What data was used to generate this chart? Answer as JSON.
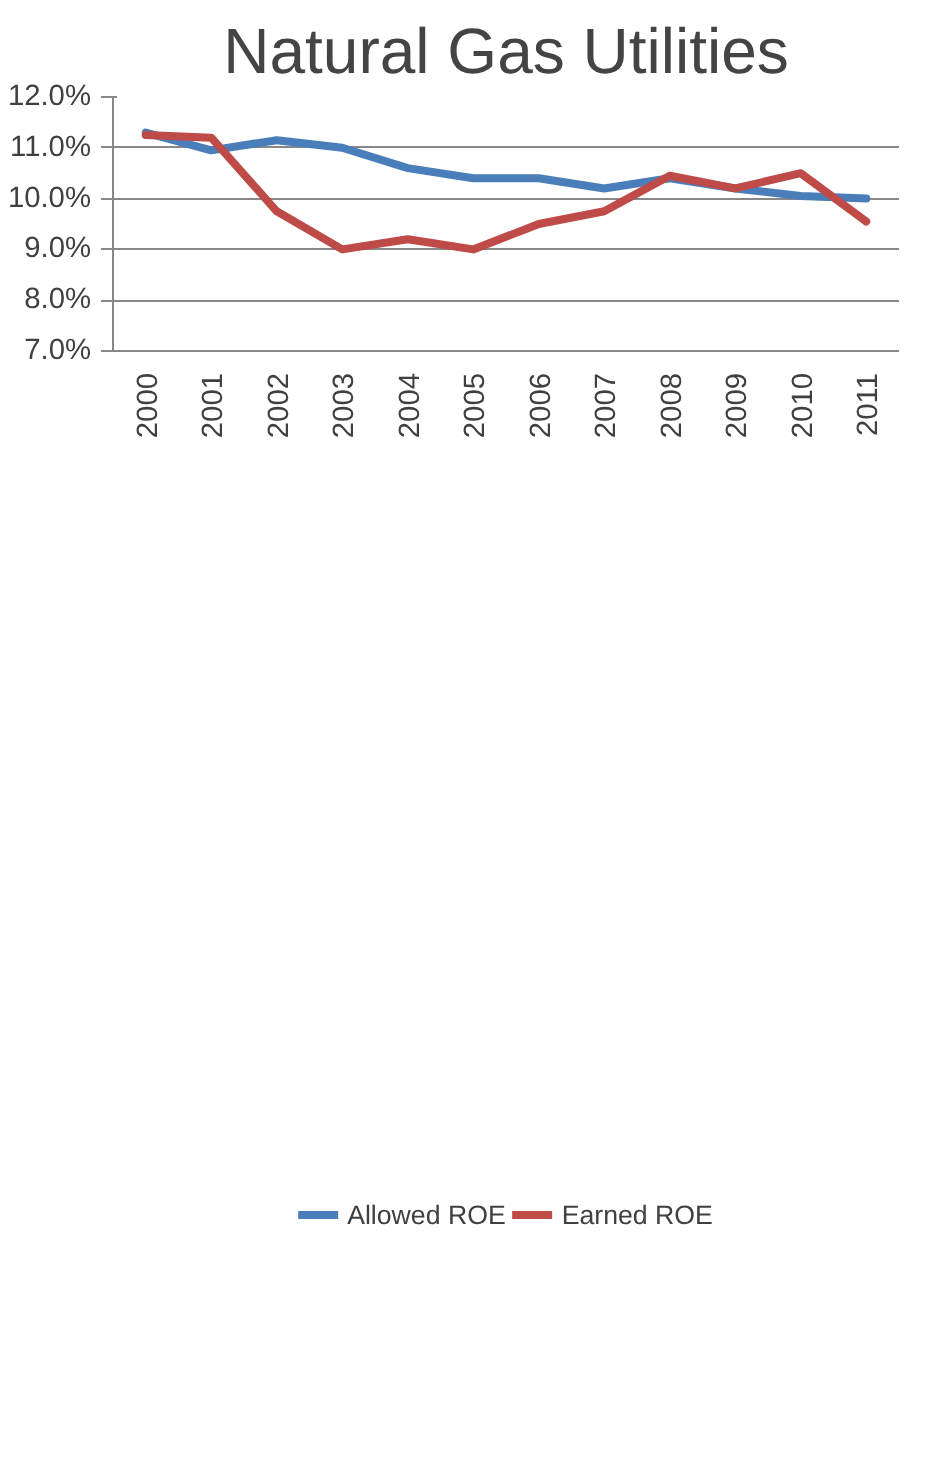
{
  "chart_data": {
    "type": "line",
    "title": "Natural Gas Utilities",
    "categories": [
      "2000",
      "2001",
      "2002",
      "2003",
      "2004",
      "2005",
      "2006",
      "2007",
      "2008",
      "2009",
      "2010",
      "2011"
    ],
    "series": [
      {
        "name": "Allowed ROE",
        "color": "#4a7ebb",
        "values": [
          11.3,
          10.95,
          11.15,
          11.0,
          10.6,
          10.4,
          10.4,
          10.2,
          10.4,
          10.2,
          10.05,
          10.0
        ]
      },
      {
        "name": "Earned ROE",
        "color": "#be4b48",
        "values": [
          11.25,
          11.2,
          9.75,
          9.0,
          9.2,
          9.0,
          9.5,
          9.75,
          10.45,
          10.2,
          10.5,
          9.55
        ]
      }
    ],
    "ylim": [
      7,
      12
    ],
    "yticks": [
      {
        "value": 7,
        "label": "7.0%"
      },
      {
        "value": 8,
        "label": "8.0%"
      },
      {
        "value": 9,
        "label": "9.0%"
      },
      {
        "value": 10,
        "label": "10.0%"
      },
      {
        "value": 11,
        "label": "11.0%"
      },
      {
        "value": 12,
        "label": "12.0%"
      }
    ],
    "grid": "y",
    "legend": "bottom",
    "marker": "none",
    "line_style": "solid"
  }
}
